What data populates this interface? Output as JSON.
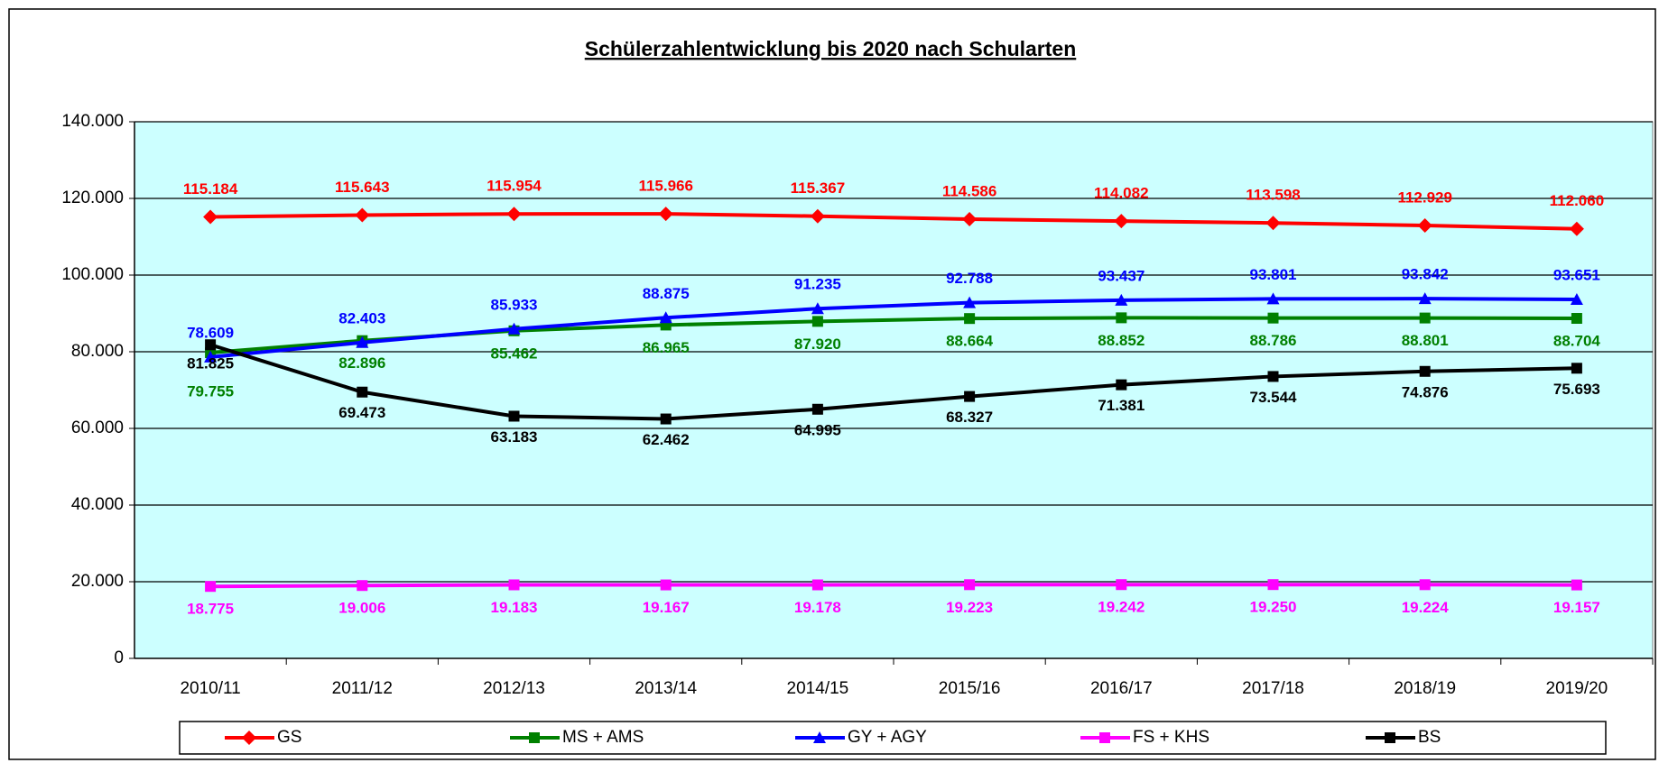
{
  "chart_data": {
    "type": "line",
    "title": "Schülerzahlentwicklung bis 2020 nach Schularten",
    "categories": [
      "2010/11",
      "2011/12",
      "2012/13",
      "2013/14",
      "2014/15",
      "2015/16",
      "2016/17",
      "2017/18",
      "2018/19",
      "2019/20"
    ],
    "ylim": [
      0,
      140000
    ],
    "yticks": [
      0,
      {
        "value": 20000,
        "label": "20.000"
      },
      {
        "value": 40000,
        "label": "40.000"
      },
      {
        "value": 60000,
        "label": "60.000"
      },
      {
        "value": 80000,
        "label": "80.000"
      },
      {
        "value": 100000,
        "label": "100.000"
      },
      {
        "value": 120000,
        "label": "120.000"
      },
      {
        "value": 140000,
        "label": "140.000"
      }
    ],
    "grid": true,
    "legend": "bottom",
    "series": [
      {
        "name": "GS",
        "color": "#ff0000",
        "marker": "diamond",
        "values": [
          115184,
          115643,
          115954,
          115966,
          115367,
          114586,
          114082,
          113598,
          112929,
          112060
        ],
        "value_labels": [
          "115.184",
          "115.643",
          "115.954",
          "115.966",
          "115.367",
          "114.586",
          "114.082",
          "113.598",
          "112.929",
          "112.060"
        ]
      },
      {
        "name": "MS + AMS",
        "color": "#008000",
        "marker": "square",
        "values": [
          79755,
          82896,
          85462,
          86965,
          87920,
          88664,
          88852,
          88786,
          88801,
          88704
        ],
        "value_labels": [
          "79.755",
          "82.896",
          "85.462",
          "86.965",
          "87.920",
          "88.664",
          "88.852",
          "88.786",
          "88.801",
          "88.704"
        ]
      },
      {
        "name": "GY + AGY",
        "color": "#0000ff",
        "marker": "triangle",
        "values": [
          78609,
          82403,
          85933,
          88875,
          91235,
          92788,
          93437,
          93801,
          93842,
          93651
        ],
        "value_labels": [
          "78.609",
          "82.403",
          "85.933",
          "88.875",
          "91.235",
          "92.788",
          "93.437",
          "93.801",
          "93.842",
          "93.651"
        ]
      },
      {
        "name": "FS + KHS",
        "color": "#ff00ff",
        "marker": "square",
        "values": [
          18775,
          19006,
          19183,
          19167,
          19178,
          19223,
          19242,
          19250,
          19224,
          19157
        ],
        "value_labels": [
          "18.775",
          "19.006",
          "19.183",
          "19.167",
          "19.178",
          "19.223",
          "19.242",
          "19.250",
          "19.224",
          "19.157"
        ]
      },
      {
        "name": "BS",
        "color": "#000000",
        "marker": "square",
        "values": [
          81825,
          69473,
          63183,
          62462,
          64995,
          68327,
          71381,
          73544,
          74876,
          75693
        ],
        "value_labels": [
          "81.825",
          "69.473",
          "63.183",
          "62.462",
          "64.995",
          "68.327",
          "71.381",
          "73.544",
          "74.876",
          "75.693"
        ]
      }
    ]
  }
}
